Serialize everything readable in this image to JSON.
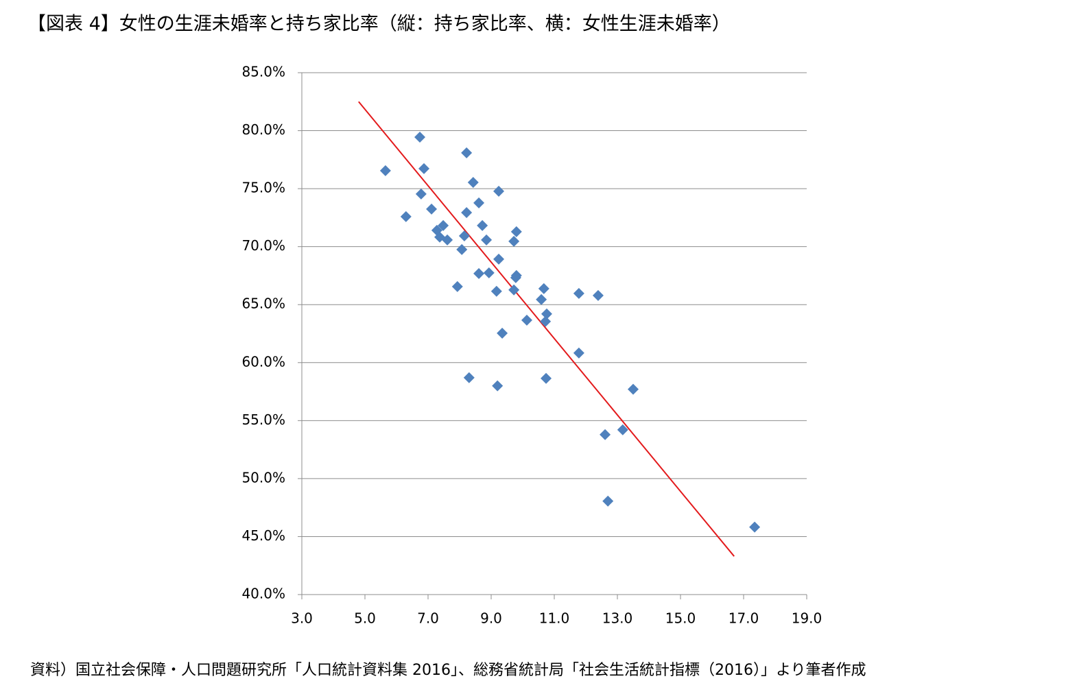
{
  "chart_data": {
    "type": "scatter",
    "title": "【図表 4】女性の生涯未婚率と持ち家比率（縦：持ち家比率、横：女性生涯未婚率）",
    "source": "資料）国立社会保障・人口問題研究所「人口統計資料集 2016」、総務省統計局「社会生活統計指標（2016）」より筆者作成",
    "xlim": [
      3,
      19
    ],
    "xticks": [
      {
        "value": 3,
        "label": "3.0"
      },
      {
        "value": 5,
        "label": "5.0"
      },
      {
        "value": 7,
        "label": "7.0"
      },
      {
        "value": 9,
        "label": "9.0"
      },
      {
        "value": 11,
        "label": "11.0"
      },
      {
        "value": 13,
        "label": "13.0"
      },
      {
        "value": 15,
        "label": "15.0"
      },
      {
        "value": 17,
        "label": "17.0"
      },
      {
        "value": 19,
        "label": "19.0"
      }
    ],
    "ylim": [
      40,
      85
    ],
    "yticks": [
      {
        "value": 40,
        "label": "40.0%"
      },
      {
        "value": 45,
        "label": "45.0%"
      },
      {
        "value": 50,
        "label": "50.0%"
      },
      {
        "value": 55,
        "label": "55.0%"
      },
      {
        "value": 60,
        "label": "60.0%"
      },
      {
        "value": 65,
        "label": "65.0%"
      },
      {
        "value": 70,
        "label": "70.0%"
      },
      {
        "value": 75,
        "label": "75.0%"
      },
      {
        "value": 80,
        "label": "80.0%"
      },
      {
        "value": 85,
        "label": "85.0%"
      }
    ],
    "grid": true,
    "series": [
      {
        "color": "#4f81bd",
        "x": [
          5.65,
          6.74,
          6.87,
          6.3,
          6.78,
          7.11,
          7.28,
          7.37,
          7.48,
          7.61,
          7.93,
          8.07,
          8.22,
          8.22,
          8.15,
          8.43,
          8.61,
          8.72,
          8.85,
          8.61,
          8.93,
          8.3,
          9.24,
          9.24,
          9.17,
          9.2,
          9.35,
          9.8,
          9.72,
          9.78,
          9.8,
          9.72,
          10.13,
          10.67,
          10.59,
          10.76,
          10.72,
          10.74,
          11.78,
          11.78,
          12.39,
          12.61,
          13.17,
          13.5,
          12.7,
          17.35
        ],
        "values": [
          76.55,
          79.44,
          76.73,
          72.59,
          74.54,
          73.24,
          71.41,
          70.82,
          71.82,
          70.58,
          66.56,
          69.75,
          78.09,
          72.94,
          70.93,
          75.54,
          73.77,
          71.82,
          70.58,
          67.68,
          67.74,
          58.7,
          74.78,
          68.92,
          66.15,
          58.0,
          62.54,
          71.29,
          70.46,
          67.33,
          67.51,
          66.27,
          63.66,
          66.38,
          65.44,
          64.2,
          63.55,
          58.64,
          65.97,
          60.83,
          65.79,
          53.79,
          54.21,
          57.7,
          48.06,
          45.82
        ]
      }
    ],
    "trendline": {
      "color": "#e31a1c",
      "x": [
        4.8,
        16.7
      ],
      "values": [
        82.5,
        43.3
      ]
    }
  }
}
